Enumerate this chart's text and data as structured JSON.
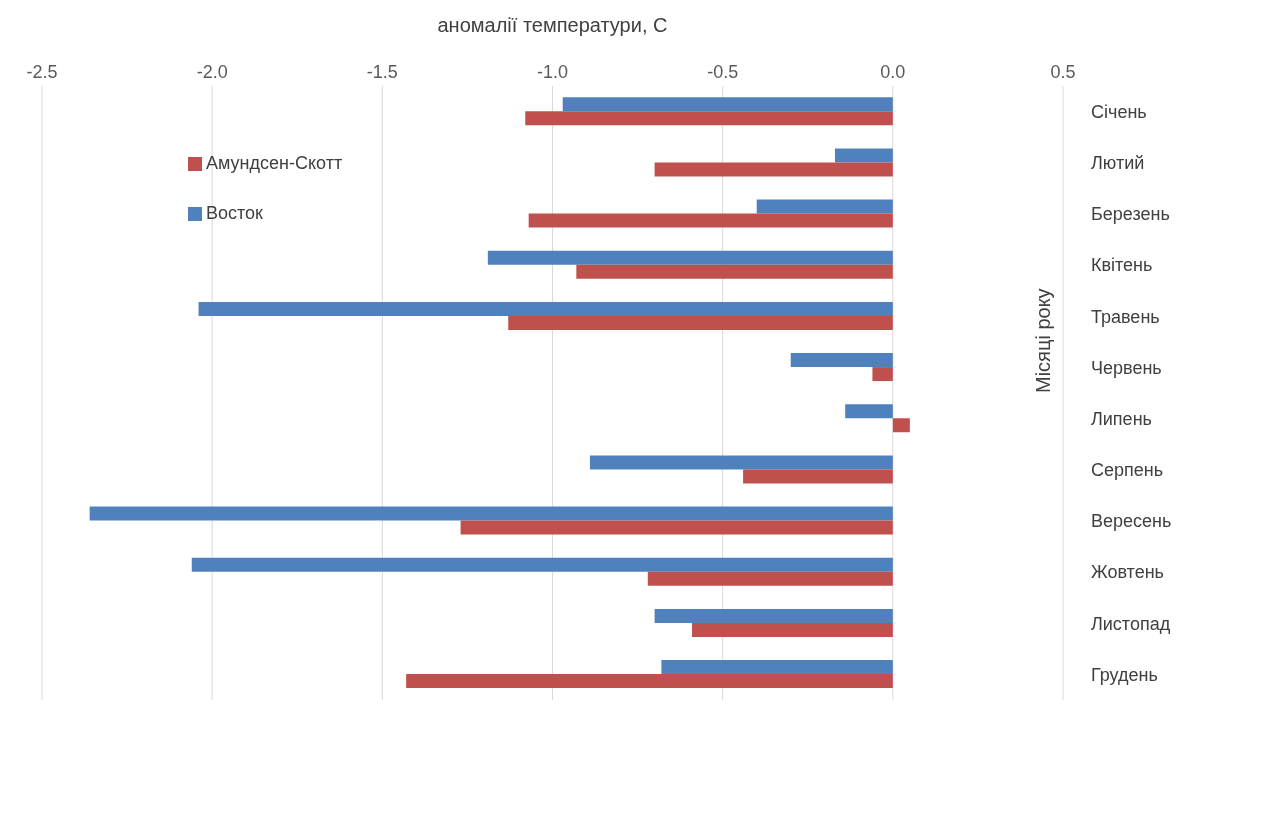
{
  "chart_data": {
    "type": "bar",
    "orientation": "horizontal",
    "xlabel": "аномалії температури, C",
    "ylabel": "Місяці року",
    "categories": [
      "Січень",
      "Лютий",
      "Березень",
      "Квітень",
      "Травень",
      "Червень",
      "Липень",
      "Серпень",
      "Вересень",
      "Жовтень",
      "Листопад",
      "Грудень"
    ],
    "series": [
      {
        "name": "Восток",
        "color": "#4f81bd",
        "values": [
          -0.97,
          -0.17,
          -0.4,
          -1.19,
          -2.04,
          -0.3,
          -0.14,
          -0.89,
          -2.36,
          -2.06,
          -0.7,
          -0.68
        ]
      },
      {
        "name": "Амундсен-Скотт",
        "color": "#c0504d",
        "values": [
          -1.08,
          -0.7,
          -1.07,
          -0.93,
          -1.13,
          -0.06,
          0.05,
          -0.44,
          -1.27,
          -0.72,
          -0.59,
          -1.43
        ]
      }
    ],
    "xlim": [
      -2.5,
      0.5
    ],
    "xticks": [
      {
        "value": -2.5,
        "label": "-2.5"
      },
      {
        "value": -2,
        "label": "-2.0"
      },
      {
        "value": -1.5,
        "label": "-1.5"
      },
      {
        "value": -1,
        "label": "-1.0"
      },
      {
        "value": -0.5,
        "label": "-0.5"
      },
      {
        "value": 0,
        "label": "0.0"
      },
      {
        "value": 0.5,
        "label": "0.5"
      }
    ],
    "grid": "x",
    "legend": "top left"
  }
}
